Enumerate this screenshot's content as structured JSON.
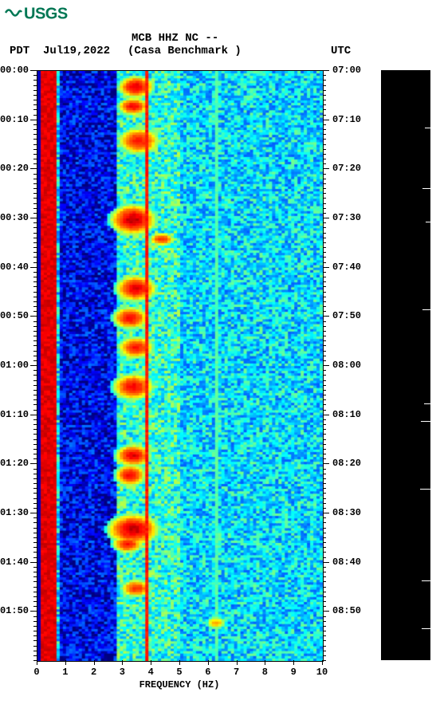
{
  "logo": {
    "text": "USGS",
    "color": "#007754"
  },
  "header": {
    "station": "MCB HHZ NC --",
    "left_tz": "PDT",
    "date": "Jul19,2022",
    "location": "(Casa Benchmark )",
    "right_tz": "UTC"
  },
  "spectrogram": {
    "type": "spectrogram",
    "xlabel": "FREQUENCY (HZ)",
    "xlim": [
      0,
      10
    ],
    "xticks": [
      0,
      1,
      2,
      3,
      4,
      5,
      6,
      7,
      8,
      9,
      10
    ],
    "time_minutes": 120,
    "left_ticks": [
      "00:00",
      "00:10",
      "00:20",
      "00:30",
      "00:40",
      "00:50",
      "01:00",
      "01:10",
      "01:20",
      "01:30",
      "01:40",
      "01:50"
    ],
    "right_ticks": [
      "07:00",
      "07:10",
      "07:20",
      "07:30",
      "07:40",
      "07:50",
      "08:00",
      "08:10",
      "08:20",
      "08:30",
      "08:40",
      "08:50"
    ],
    "minor_per_major_y": 10,
    "minor_per_major_x": 1,
    "colormap": {
      "name": "jet",
      "stops": [
        [
          0.0,
          "#00007f"
        ],
        [
          0.1,
          "#0000ff"
        ],
        [
          0.25,
          "#007fff"
        ],
        [
          0.38,
          "#00ffff"
        ],
        [
          0.5,
          "#7fff7f"
        ],
        [
          0.62,
          "#ffff00"
        ],
        [
          0.75,
          "#ff7f00"
        ],
        [
          0.9,
          "#ff0000"
        ],
        [
          1.0,
          "#7f0000"
        ]
      ]
    },
    "vertical_bands": [
      {
        "freq_center": 0.35,
        "width": 0.6,
        "color": "#7f0000",
        "opacity": 1.0
      },
      {
        "freq_center": 3.8,
        "width": 0.1,
        "color": "#7f0000",
        "opacity": 0.95
      },
      {
        "freq_center": 6.2,
        "width": 0.12,
        "color": "#ffff00",
        "opacity": 0.5
      }
    ],
    "background_regions": [
      {
        "freq_range": [
          0.7,
          2.7
        ],
        "base_level": 0.1
      },
      {
        "freq_range": [
          2.7,
          5.0
        ],
        "base_level": 0.42
      },
      {
        "freq_range": [
          5.0,
          10.0
        ],
        "base_level": 0.35
      }
    ],
    "hot_events": [
      {
        "time_min": 3,
        "freq": 3.4,
        "intensity": 0.92,
        "w": 0.7,
        "h": 2.5
      },
      {
        "time_min": 7,
        "freq": 3.3,
        "intensity": 0.9,
        "w": 0.6,
        "h": 2
      },
      {
        "time_min": 14,
        "freq": 3.5,
        "intensity": 0.88,
        "w": 0.8,
        "h": 3
      },
      {
        "time_min": 30,
        "freq": 3.3,
        "intensity": 0.95,
        "w": 0.9,
        "h": 3.5
      },
      {
        "time_min": 34,
        "freq": 4.3,
        "intensity": 0.85,
        "w": 0.5,
        "h": 1.5
      },
      {
        "time_min": 44,
        "freq": 3.4,
        "intensity": 0.92,
        "w": 0.8,
        "h": 3
      },
      {
        "time_min": 50,
        "freq": 3.2,
        "intensity": 0.9,
        "w": 0.7,
        "h": 2.5
      },
      {
        "time_min": 56,
        "freq": 3.4,
        "intensity": 0.88,
        "w": 0.7,
        "h": 2.5
      },
      {
        "time_min": 64,
        "freq": 3.3,
        "intensity": 0.9,
        "w": 0.8,
        "h": 3
      },
      {
        "time_min": 78,
        "freq": 3.3,
        "intensity": 0.92,
        "w": 0.7,
        "h": 2.5
      },
      {
        "time_min": 82,
        "freq": 3.2,
        "intensity": 0.9,
        "w": 0.6,
        "h": 2.5
      },
      {
        "time_min": 93,
        "freq": 3.3,
        "intensity": 0.95,
        "w": 1.0,
        "h": 3.5
      },
      {
        "time_min": 96,
        "freq": 3.1,
        "intensity": 0.88,
        "w": 0.6,
        "h": 2
      },
      {
        "time_min": 105,
        "freq": 3.4,
        "intensity": 0.85,
        "w": 0.6,
        "h": 2
      },
      {
        "time_min": 112,
        "freq": 6.2,
        "intensity": 0.7,
        "w": 0.4,
        "h": 1.5
      }
    ],
    "noise_seed": 7
  },
  "colorbar": {
    "background": "#000000",
    "white_ticks": [
      72,
      148,
      190,
      300,
      418,
      440,
      525,
      640,
      700
    ]
  },
  "fonts": {
    "label_family": "Courier New",
    "label_size_pt": 12,
    "title_size_pt": 14,
    "weight": "bold"
  }
}
